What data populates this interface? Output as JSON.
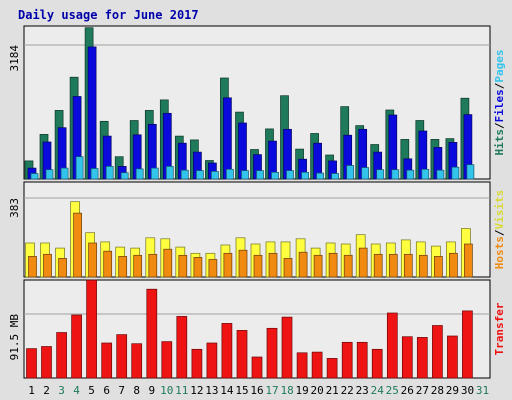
{
  "title": "Daily usage for June 2017",
  "colors": {
    "background": "#e0e0e0",
    "plot_background": "#ececec",
    "hits": "#1e7a5a",
    "files": "#0a0adc",
    "pages": "#33c4ec",
    "visits": "#ffff40",
    "hosts": "#f08a10",
    "transfer": "#ee1414",
    "title_text": "#0000aa",
    "weekend_day": "#1e7a5a",
    "weekday_day": "#000000"
  },
  "chart_data": [
    {
      "type": "bar",
      "panel": "top",
      "ylabel_parts": [
        "Hits",
        "Files",
        "Pages"
      ],
      "y_tick_label": "3184",
      "y_tick_value": 3184,
      "categories": [
        "1",
        "2",
        "3",
        "4",
        "5",
        "6",
        "7",
        "8",
        "9",
        "10",
        "11",
        "12",
        "13",
        "14",
        "15",
        "16",
        "17",
        "18",
        "19",
        "20",
        "21",
        "22",
        "23",
        "24",
        "25",
        "26",
        "27",
        "28",
        "29",
        "30",
        "31"
      ],
      "series": [
        {
          "name": "Hits",
          "values": [
            430,
            1060,
            1630,
            2420,
            3595,
            1370,
            530,
            1390,
            1630,
            1880,
            1020,
            930,
            440,
            2400,
            1590,
            700,
            1190,
            1980,
            710,
            1080,
            570,
            1720,
            1270,
            820,
            1640,
            940,
            1390,
            940,
            960,
            1920,
            0
          ]
        },
        {
          "name": "Files",
          "values": [
            260,
            880,
            1220,
            1960,
            3140,
            1020,
            300,
            1050,
            1300,
            1560,
            850,
            640,
            380,
            1930,
            1330,
            580,
            900,
            1180,
            470,
            850,
            430,
            1040,
            1180,
            640,
            1520,
            480,
            1140,
            750,
            870,
            1530,
            0
          ]
        },
        {
          "name": "Pages",
          "values": [
            130,
            220,
            260,
            530,
            250,
            300,
            150,
            240,
            260,
            300,
            210,
            200,
            180,
            230,
            200,
            200,
            160,
            200,
            160,
            140,
            130,
            320,
            270,
            220,
            220,
            210,
            230,
            210,
            280,
            340,
            0
          ]
        }
      ]
    },
    {
      "type": "bar",
      "panel": "middle",
      "ylabel_parts": [
        "Hosts",
        "Visits"
      ],
      "y_tick_label": "383",
      "y_tick_value": 383,
      "categories": [
        "1",
        "2",
        "3",
        "4",
        "5",
        "6",
        "7",
        "8",
        "9",
        "10",
        "11",
        "12",
        "13",
        "14",
        "15",
        "16",
        "17",
        "18",
        "19",
        "20",
        "21",
        "22",
        "23",
        "24",
        "25",
        "26",
        "27",
        "28",
        "29",
        "30",
        "31"
      ],
      "series": [
        {
          "name": "Visits",
          "values": [
            165,
            165,
            140,
            365,
            215,
            170,
            145,
            140,
            190,
            185,
            145,
            115,
            115,
            155,
            190,
            160,
            170,
            170,
            185,
            140,
            165,
            160,
            205,
            160,
            165,
            180,
            170,
            150,
            170,
            235,
            0
          ]
        },
        {
          "name": "Hosts",
          "values": [
            100,
            110,
            90,
            310,
            165,
            125,
            100,
            105,
            110,
            135,
            105,
            95,
            85,
            115,
            130,
            105,
            115,
            90,
            120,
            105,
            115,
            105,
            140,
            110,
            110,
            110,
            105,
            100,
            115,
            160,
            0
          ]
        }
      ]
    },
    {
      "type": "bar",
      "panel": "bottom",
      "ylabel_parts": [
        "Transfer"
      ],
      "y_tick_label": "91.5 MB",
      "y_tick_value": 91.5,
      "categories": [
        "1",
        "2",
        "3",
        "4",
        "5",
        "6",
        "7",
        "8",
        "9",
        "10",
        "11",
        "12",
        "13",
        "14",
        "15",
        "16",
        "17",
        "18",
        "19",
        "20",
        "21",
        "22",
        "23",
        "24",
        "25",
        "26",
        "27",
        "28",
        "29",
        "30",
        "31"
      ],
      "series": [
        {
          "name": "Transfer",
          "values": [
            42,
            45,
            65,
            90,
            140,
            50,
            62,
            49,
            127,
            52,
            88,
            41,
            50,
            78,
            68,
            30,
            71,
            87,
            36,
            37,
            28,
            51,
            51,
            41,
            93,
            59,
            58,
            75,
            60,
            96,
            0
          ]
        }
      ]
    }
  ]
}
